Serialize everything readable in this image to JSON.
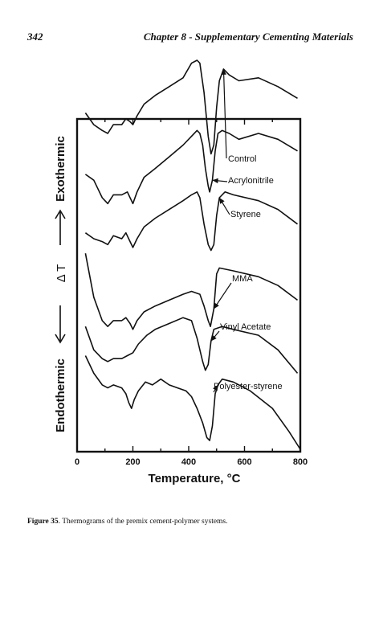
{
  "header": {
    "page_number": "342",
    "chapter_title": "Chapter 8 - Supplementary Cementing Materials"
  },
  "caption": {
    "label": "Figure 35",
    "text": ". Thermograms of the premix cement-polymer systems."
  },
  "figure": {
    "y_axis": {
      "top_label": "Exothermic",
      "middle_label": "Δ T",
      "bottom_label": "Endothermic"
    },
    "x_axis": {
      "label": "Temperature, °C",
      "ticks": [
        "0",
        "200",
        "400",
        "600",
        "800"
      ]
    }
  },
  "chart_data": {
    "type": "line",
    "xlabel": "Temperature, °C",
    "ylabel": "Δ T",
    "xlim": [
      0,
      800
    ],
    "x_ticks": [
      0,
      200,
      400,
      600,
      800
    ],
    "y_ticks_labeled": false,
    "grid": false,
    "series": [
      {
        "name": "Control",
        "points": [
          [
            30,
            0.93
          ],
          [
            60,
            0.89
          ],
          [
            90,
            0.87
          ],
          [
            110,
            0.86
          ],
          [
            130,
            0.89
          ],
          [
            160,
            0.89
          ],
          [
            175,
            0.91
          ],
          [
            190,
            0.9
          ],
          [
            200,
            0.89
          ],
          [
            215,
            0.92
          ],
          [
            240,
            0.96
          ],
          [
            280,
            0.99
          ],
          [
            330,
            1.02
          ],
          [
            380,
            1.05
          ],
          [
            410,
            1.1
          ],
          [
            430,
            1.11
          ],
          [
            440,
            1.1
          ],
          [
            455,
            1.0
          ],
          [
            470,
            0.85
          ],
          [
            480,
            0.79
          ],
          [
            490,
            0.82
          ],
          [
            500,
            0.95
          ],
          [
            510,
            1.04
          ],
          [
            525,
            1.08
          ],
          [
            545,
            1.06
          ],
          [
            580,
            1.04
          ],
          [
            650,
            1.05
          ],
          [
            720,
            1.02
          ],
          [
            790,
            0.98
          ]
        ]
      },
      {
        "name": "Acrylonitrile",
        "points": [
          [
            30,
            0.72
          ],
          [
            60,
            0.7
          ],
          [
            90,
            0.64
          ],
          [
            110,
            0.62
          ],
          [
            130,
            0.65
          ],
          [
            160,
            0.65
          ],
          [
            180,
            0.66
          ],
          [
            190,
            0.64
          ],
          [
            200,
            0.62
          ],
          [
            215,
            0.66
          ],
          [
            240,
            0.71
          ],
          [
            280,
            0.74
          ],
          [
            330,
            0.78
          ],
          [
            380,
            0.82
          ],
          [
            410,
            0.85
          ],
          [
            430,
            0.87
          ],
          [
            440,
            0.86
          ],
          [
            450,
            0.82
          ],
          [
            460,
            0.74
          ],
          [
            470,
            0.68
          ],
          [
            475,
            0.66
          ],
          [
            485,
            0.7
          ],
          [
            495,
            0.8
          ],
          [
            505,
            0.86
          ],
          [
            520,
            0.87
          ],
          [
            545,
            0.86
          ],
          [
            580,
            0.84
          ],
          [
            650,
            0.86
          ],
          [
            720,
            0.84
          ],
          [
            790,
            0.8
          ]
        ]
      },
      {
        "name": "Styrene",
        "points": [
          [
            30,
            0.52
          ],
          [
            60,
            0.5
          ],
          [
            90,
            0.49
          ],
          [
            110,
            0.48
          ],
          [
            130,
            0.51
          ],
          [
            160,
            0.5
          ],
          [
            175,
            0.52
          ],
          [
            190,
            0.49
          ],
          [
            200,
            0.47
          ],
          [
            215,
            0.5
          ],
          [
            240,
            0.54
          ],
          [
            280,
            0.57
          ],
          [
            330,
            0.6
          ],
          [
            380,
            0.63
          ],
          [
            410,
            0.65
          ],
          [
            430,
            0.66
          ],
          [
            440,
            0.64
          ],
          [
            455,
            0.55
          ],
          [
            470,
            0.48
          ],
          [
            480,
            0.46
          ],
          [
            490,
            0.48
          ],
          [
            500,
            0.58
          ],
          [
            510,
            0.64
          ],
          [
            530,
            0.66
          ],
          [
            560,
            0.65
          ],
          [
            650,
            0.63
          ],
          [
            720,
            0.6
          ],
          [
            790,
            0.55
          ]
        ]
      },
      {
        "name": "MMA",
        "points": [
          [
            30,
            0.45
          ],
          [
            60,
            0.3
          ],
          [
            90,
            0.22
          ],
          [
            110,
            0.2
          ],
          [
            130,
            0.22
          ],
          [
            160,
            0.22
          ],
          [
            175,
            0.23
          ],
          [
            190,
            0.21
          ],
          [
            200,
            0.19
          ],
          [
            215,
            0.22
          ],
          [
            240,
            0.25
          ],
          [
            280,
            0.27
          ],
          [
            330,
            0.29
          ],
          [
            380,
            0.31
          ],
          [
            410,
            0.32
          ],
          [
            440,
            0.31
          ],
          [
            455,
            0.27
          ],
          [
            470,
            0.22
          ],
          [
            478,
            0.2
          ],
          [
            490,
            0.26
          ],
          [
            500,
            0.38
          ],
          [
            510,
            0.4
          ],
          [
            560,
            0.39
          ],
          [
            650,
            0.37
          ],
          [
            720,
            0.34
          ],
          [
            790,
            0.29
          ]
        ]
      },
      {
        "name": "Vinyl Acetate",
        "points": [
          [
            30,
            0.2
          ],
          [
            60,
            0.12
          ],
          [
            90,
            0.09
          ],
          [
            110,
            0.08
          ],
          [
            130,
            0.09
          ],
          [
            160,
            0.09
          ],
          [
            180,
            0.1
          ],
          [
            200,
            0.11
          ],
          [
            220,
            0.14
          ],
          [
            250,
            0.17
          ],
          [
            280,
            0.19
          ],
          [
            330,
            0.21
          ],
          [
            380,
            0.23
          ],
          [
            410,
            0.22
          ],
          [
            430,
            0.16
          ],
          [
            450,
            0.08
          ],
          [
            460,
            0.05
          ],
          [
            470,
            0.07
          ],
          [
            480,
            0.15
          ],
          [
            490,
            0.19
          ],
          [
            520,
            0.2
          ],
          [
            560,
            0.19
          ],
          [
            650,
            0.17
          ],
          [
            720,
            0.12
          ],
          [
            790,
            0.04
          ]
        ]
      },
      {
        "name": "Polyester-styrene",
        "points": [
          [
            30,
            0.1
          ],
          [
            60,
            0.04
          ],
          [
            90,
            0.0
          ],
          [
            110,
            -0.01
          ],
          [
            130,
            0.0
          ],
          [
            160,
            -0.01
          ],
          [
            175,
            -0.03
          ],
          [
            185,
            -0.06
          ],
          [
            195,
            -0.08
          ],
          [
            205,
            -0.05
          ],
          [
            220,
            -0.02
          ],
          [
            245,
            0.01
          ],
          [
            270,
            0.0
          ],
          [
            300,
            0.02
          ],
          [
            330,
            0.0
          ],
          [
            360,
            -0.01
          ],
          [
            390,
            -0.02
          ],
          [
            410,
            -0.04
          ],
          [
            430,
            -0.08
          ],
          [
            450,
            -0.13
          ],
          [
            465,
            -0.18
          ],
          [
            475,
            -0.19
          ],
          [
            485,
            -0.14
          ],
          [
            495,
            -0.03
          ],
          [
            505,
            0.0
          ],
          [
            520,
            0.02
          ],
          [
            560,
            0.01
          ],
          [
            620,
            -0.02
          ],
          [
            700,
            -0.08
          ],
          [
            760,
            -0.16
          ],
          [
            800,
            -0.22
          ]
        ]
      }
    ]
  }
}
